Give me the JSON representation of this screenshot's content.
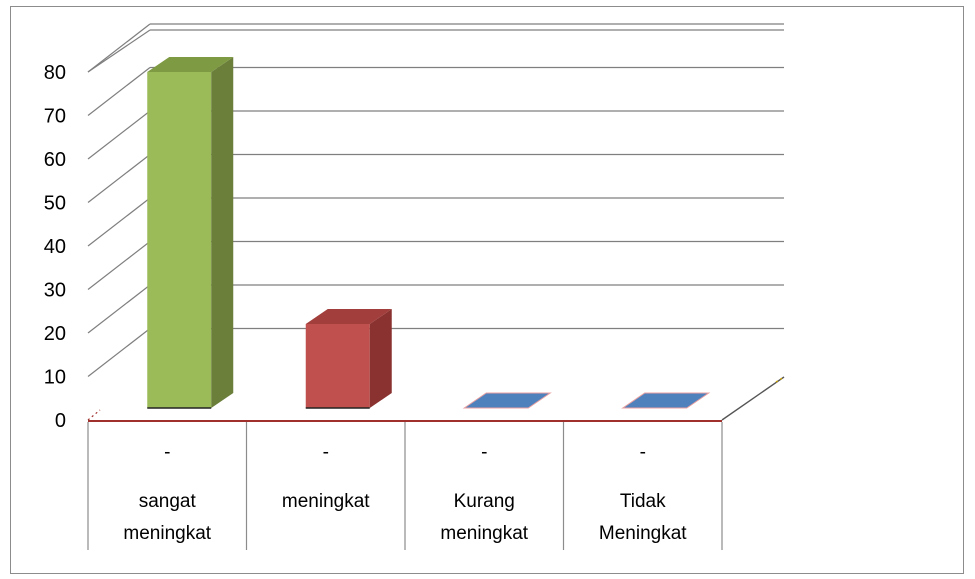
{
  "chart_data": {
    "type": "bar",
    "title": "",
    "xlabel": "",
    "ylabel": "",
    "ylim": [
      0,
      80
    ],
    "yticks": [
      "0",
      "10",
      "20",
      "30",
      "40",
      "50",
      "60",
      "70",
      "80"
    ],
    "categories": [
      {
        "top": "-",
        "lines": [
          "sangat",
          "meningkat"
        ]
      },
      {
        "top": "-",
        "lines": [
          "meningkat"
        ]
      },
      {
        "top": "-",
        "lines": [
          "Kurang",
          "meningkat"
        ]
      },
      {
        "top": "-",
        "lines": [
          "Tidak",
          "Meningkat"
        ]
      }
    ],
    "values": [
      80,
      20,
      0,
      0
    ],
    "grid": true,
    "bar_colors": [
      {
        "front": "#9bbb59",
        "side": "#6b7f3b",
        "top": "#7e9a42"
      },
      {
        "front": "#c0504d",
        "side": "#8a3230",
        "top": "#a23e3b"
      },
      {
        "front": "#4f81bd",
        "side": "#2c5282",
        "top": "#3a6aa3"
      },
      {
        "front": "#4f81bd",
        "side": "#2c5282",
        "top": "#3a6aa3"
      }
    ],
    "gridline_color": "#7f7f7f",
    "axis_line_color": "#a0302c"
  }
}
